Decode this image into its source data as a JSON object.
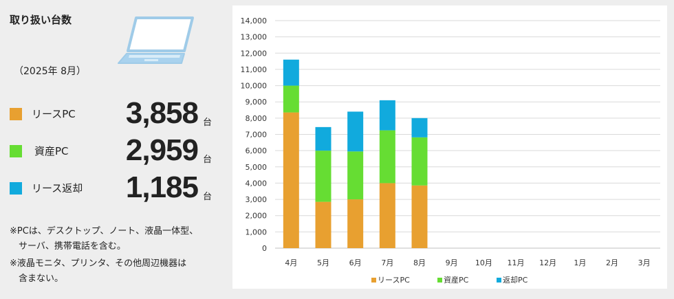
{
  "summary": {
    "title": "取り扱い台数",
    "period": "（2025年 8月）",
    "items": [
      {
        "label": "リースPC",
        "value": "3,858",
        "unit": "台",
        "color": "#E8A030"
      },
      {
        "label": "資産PC",
        "value": "2,959",
        "unit": "台",
        "color": "#66DD33"
      },
      {
        "label": "リース返却",
        "value": "1,185",
        "unit": "台",
        "color": "#11AADD"
      }
    ],
    "notes": [
      "※PCは、デスクトップ、ノート、液晶一体型、",
      "　サーバ、携帯電話を含む。",
      "※液晶モニタ、プリンタ、その他周辺機器は",
      "　含まない。"
    ]
  },
  "chart_data": {
    "type": "bar",
    "stacked": true,
    "categories": [
      "4月",
      "5月",
      "6月",
      "7月",
      "8月",
      "9月",
      "10月",
      "11月",
      "12月",
      "1月",
      "2月",
      "3月"
    ],
    "series": [
      {
        "name": "リースPC",
        "color": "#E8A030",
        "values": [
          8350,
          2850,
          3000,
          4000,
          3858,
          null,
          null,
          null,
          null,
          null,
          null,
          null
        ]
      },
      {
        "name": "資産PC",
        "color": "#66DD33",
        "values": [
          1650,
          3150,
          2950,
          3250,
          2959,
          null,
          null,
          null,
          null,
          null,
          null,
          null
        ]
      },
      {
        "name": "返却PC",
        "color": "#11AADD",
        "values": [
          1600,
          1450,
          2450,
          1850,
          1185,
          null,
          null,
          null,
          null,
          null,
          null,
          null
        ]
      }
    ],
    "ylim": [
      0,
      14000
    ],
    "yticks": [
      0,
      1000,
      2000,
      3000,
      4000,
      5000,
      6000,
      7000,
      8000,
      9000,
      10000,
      11000,
      12000,
      13000,
      14000
    ],
    "ytick_labels": [
      "0",
      "1,000",
      "2,000",
      "3,000",
      "4,000",
      "5,000",
      "6,000",
      "7,000",
      "8,000",
      "9,000",
      "10,000",
      "11,000",
      "12,000",
      "13,000",
      "14,000"
    ],
    "grid": true,
    "legend": "bottom"
  }
}
